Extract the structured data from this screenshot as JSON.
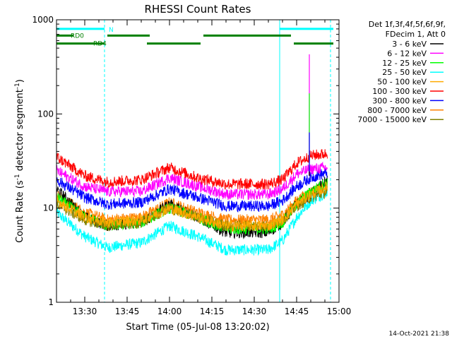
{
  "chart_data": {
    "type": "line",
    "title": "RHESSI Count Rates",
    "xlabel": "Start Time (05-Jul-08 13:20:02)",
    "ylabel_parts": [
      "Count Rate (s",
      "-1",
      " detector segment",
      "-1",
      ")"
    ],
    "y_scale": "log",
    "ylim": [
      1,
      1000
    ],
    "y_ticks": [
      {
        "value": 1,
        "label": "1"
      },
      {
        "value": 10,
        "label": "10"
      },
      {
        "value": 100,
        "label": "100"
      },
      {
        "value": 1000,
        "label": "1000"
      }
    ],
    "xlim": [
      "13:20",
      "15:00"
    ],
    "x_ticks": [
      "13:30",
      "13:45",
      "14:00",
      "14:15",
      "14:30",
      "14:45",
      "15:00"
    ],
    "legend": {
      "header": [
        "Det 1f,3f,4f,5f,6f,9f,",
        "FDecim 1, Att 0"
      ],
      "placement": "right"
    },
    "series": [
      {
        "name": "3 - 6 keV",
        "color": "#000000",
        "x": [
          "13:20",
          "13:30",
          "13:38",
          "13:50",
          "14:00",
          "14:10",
          "14:20",
          "14:35",
          "14:40",
          "14:45",
          "14:50",
          "14:56"
        ],
        "values": [
          16,
          8,
          6.5,
          7,
          11,
          8,
          5.5,
          5.5,
          7,
          11,
          14,
          20
        ]
      },
      {
        "name": "6 - 12 keV",
        "color": "#ff00ff",
        "x": [
          "13:20",
          "13:30",
          "13:38",
          "13:50",
          "14:00",
          "14:10",
          "14:20",
          "14:35",
          "14:40",
          "14:45",
          "14:50",
          "14:56"
        ],
        "values": [
          25,
          17,
          15,
          15,
          21,
          17,
          14,
          14,
          16,
          23,
          26,
          27
        ]
      },
      {
        "name": "12 - 25 keV",
        "color": "#00ff00",
        "x": [
          "13:20",
          "13:30",
          "13:38",
          "13:50",
          "14:00",
          "14:10",
          "14:20",
          "14:35",
          "14:40",
          "14:45",
          "14:50",
          "14:56"
        ],
        "values": [
          13,
          8,
          6.5,
          7,
          10,
          8,
          6,
          6,
          7,
          11,
          15,
          19
        ]
      },
      {
        "name": "25 - 50 keV",
        "color": "#00ffff",
        "x": [
          "13:20",
          "13:30",
          "13:38",
          "13:50",
          "14:00",
          "14:10",
          "14:20",
          "14:35",
          "14:40",
          "14:45",
          "14:50",
          "14:56"
        ],
        "values": [
          9,
          5,
          3.8,
          4.3,
          6.5,
          5,
          3.6,
          3.6,
          4.5,
          8,
          12,
          15
        ]
      },
      {
        "name": "50 - 100 keV",
        "color": "#ffaa00",
        "x": [
          "13:20",
          "13:30",
          "13:38",
          "13:50",
          "14:00",
          "14:10",
          "14:20",
          "14:35",
          "14:40",
          "14:45",
          "14:50",
          "14:56"
        ],
        "values": [
          12,
          8,
          7,
          7.5,
          10,
          8,
          6.5,
          6.5,
          7.5,
          11,
          14,
          17
        ]
      },
      {
        "name": "100 - 300 keV",
        "color": "#ff0000",
        "x": [
          "13:20",
          "13:30",
          "13:38",
          "13:50",
          "14:00",
          "14:10",
          "14:20",
          "14:35",
          "14:40",
          "14:45",
          "14:50",
          "14:56"
        ],
        "values": [
          35,
          22,
          19,
          20,
          27,
          21,
          18,
          18,
          20,
          30,
          36,
          38
        ]
      },
      {
        "name": "300 - 800 keV",
        "color": "#0000ff",
        "x": [
          "13:20",
          "13:30",
          "13:38",
          "13:50",
          "14:00",
          "14:10",
          "14:20",
          "14:35",
          "14:40",
          "14:45",
          "14:50",
          "14:56"
        ],
        "values": [
          20,
          13,
          11,
          11.5,
          16,
          13,
          10.5,
          10.5,
          12,
          17,
          21,
          24
        ]
      },
      {
        "name": "800 - 7000 keV",
        "color": "#ff8000",
        "x": [
          "13:20",
          "13:30",
          "13:38",
          "13:50",
          "14:00",
          "14:10",
          "14:20",
          "14:35",
          "14:40",
          "14:45",
          "14:50",
          "14:56"
        ],
        "values": [
          14,
          9,
          7.5,
          8,
          11.5,
          9,
          7.5,
          7.5,
          8.5,
          12,
          15,
          17
        ]
      },
      {
        "name": "7000 - 15000 keV",
        "color": "#808000",
        "x": [
          "13:20",
          "13:30",
          "13:38",
          "13:50",
          "14:00",
          "14:10",
          "14:20",
          "14:35",
          "14:40",
          "14:45",
          "14:50",
          "14:56"
        ],
        "values": [
          11,
          7.5,
          6.5,
          7,
          10,
          8,
          6.5,
          6.5,
          7.5,
          10.5,
          13,
          15
        ]
      }
    ],
    "spike": {
      "x": "14:49:30",
      "peak": 430,
      "colors": [
        "#ff00ff",
        "#00ff00",
        "#0000ff",
        "#000000"
      ]
    },
    "night_markers": {
      "color": "#00ffff",
      "solid": [
        "13:20",
        "14:39"
      ],
      "dashed": [
        "13:37",
        "14:57"
      ],
      "bars_value": 800,
      "bars": [
        [
          "13:20",
          "13:37"
        ],
        [
          "14:39",
          "14:58"
        ]
      ],
      "label": "N"
    },
    "attenuator_states": {
      "color": "#008000",
      "upper_value": 680,
      "lower_value": 560,
      "upper": [
        [
          "13:20",
          "13:26"
        ],
        [
          "13:38",
          "13:53"
        ],
        [
          "14:12",
          "14:43"
        ]
      ],
      "lower": [
        [
          "13:20",
          "13:37"
        ],
        [
          "13:52",
          "14:11"
        ],
        [
          "14:44",
          "14:58"
        ]
      ],
      "labels": [
        {
          "text": "RD0",
          "x": "13:25",
          "value": 680
        },
        {
          "text": "RD4",
          "x": "13:33",
          "value": 560
        }
      ]
    }
  },
  "timestamp": "14-Oct-2021 21:38"
}
